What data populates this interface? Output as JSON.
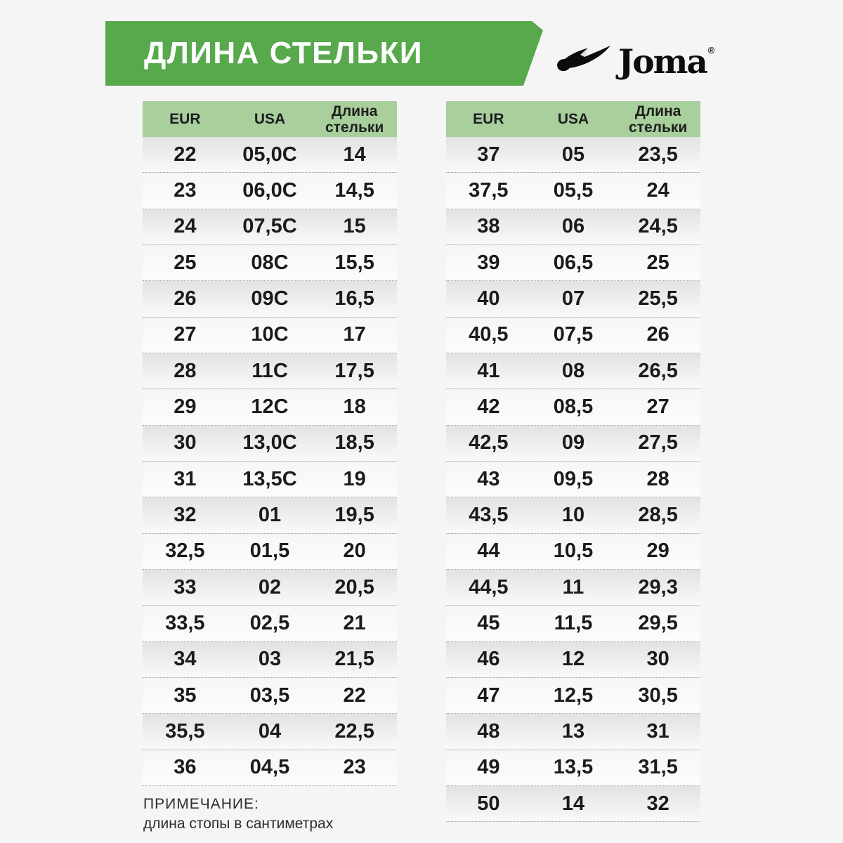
{
  "header": {
    "title": "ДЛИНА СТЕЛЬКИ",
    "brand": "Joma",
    "registered_mark": "®"
  },
  "tables": {
    "left": {
      "columns": [
        "EUR",
        "USA",
        "Длина стельки"
      ],
      "rows": [
        [
          "22",
          "05,0C",
          "14"
        ],
        [
          "23",
          "06,0C",
          "14,5"
        ],
        [
          "24",
          "07,5C",
          "15"
        ],
        [
          "25",
          "08C",
          "15,5"
        ],
        [
          "26",
          "09C",
          "16,5"
        ],
        [
          "27",
          "10C",
          "17"
        ],
        [
          "28",
          "11C",
          "17,5"
        ],
        [
          "29",
          "12C",
          "18"
        ],
        [
          "30",
          "13,0C",
          "18,5"
        ],
        [
          "31",
          "13,5C",
          "19"
        ],
        [
          "32",
          "01",
          "19,5"
        ],
        [
          "32,5",
          "01,5",
          "20"
        ],
        [
          "33",
          "02",
          "20,5"
        ],
        [
          "33,5",
          "02,5",
          "21"
        ],
        [
          "34",
          "03",
          "21,5"
        ],
        [
          "35",
          "03,5",
          "22"
        ],
        [
          "35,5",
          "04",
          "22,5"
        ],
        [
          "36",
          "04,5",
          "23"
        ]
      ]
    },
    "right": {
      "columns": [
        "EUR",
        "USA",
        "Длина стельки"
      ],
      "rows": [
        [
          "37",
          "05",
          "23,5"
        ],
        [
          "37,5",
          "05,5",
          "24"
        ],
        [
          "38",
          "06",
          "24,5"
        ],
        [
          "39",
          "06,5",
          "25"
        ],
        [
          "40",
          "07",
          "25,5"
        ],
        [
          "40,5",
          "07,5",
          "26"
        ],
        [
          "41",
          "08",
          "26,5"
        ],
        [
          "42",
          "08,5",
          "27"
        ],
        [
          "42,5",
          "09",
          "27,5"
        ],
        [
          "43",
          "09,5",
          "28"
        ],
        [
          "43,5",
          "10",
          "28,5"
        ],
        [
          "44",
          "10,5",
          "29"
        ],
        [
          "44,5",
          "11",
          "29,3"
        ],
        [
          "45",
          "11,5",
          "29,5"
        ],
        [
          "46",
          "12",
          "30"
        ],
        [
          "47",
          "12,5",
          "30,5"
        ],
        [
          "48",
          "13",
          "31"
        ],
        [
          "49",
          "13,5",
          "31,5"
        ],
        [
          "50",
          "14",
          "32"
        ]
      ]
    }
  },
  "note": {
    "title": "ПРИМЕЧАНИЕ:",
    "text": "длина стопы в сантиметрах"
  },
  "colors": {
    "banner_green": "#57a94c",
    "header_green": "#a8cf9c",
    "page_bg": "#f5f5f5",
    "text_dark": "#1b1b1b"
  }
}
